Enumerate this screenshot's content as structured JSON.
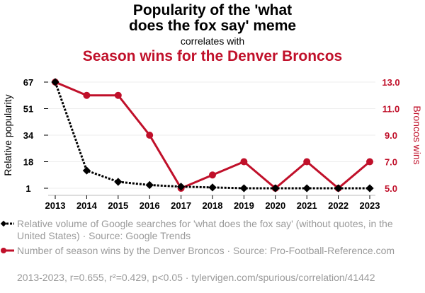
{
  "title_line1": "Popularity of the 'what",
  "title_line2": "does the fox say' meme",
  "correlates": "correlates with",
  "subtitle": "Season wins for the Denver Broncos",
  "legend": {
    "series1": "Relative volume of Google searches for 'what does the fox say' (without quotes, in the United States) · Source: Google Trends",
    "series2": "Number of season wins by the Denver Broncos · Source: Pro-Football-Reference.com"
  },
  "footer": "2013-2023, r=0.655, r²=0.429, p<0.05 · tylervigen.com/spurious/correlation/41442",
  "colors": {
    "series1": "#000000",
    "series2": "#c0102a"
  },
  "chart_data": {
    "type": "line",
    "x": [
      2013,
      2014,
      2015,
      2016,
      2017,
      2018,
      2019,
      2020,
      2021,
      2022,
      2023
    ],
    "series": [
      {
        "name": "Relative popularity",
        "axis": "left",
        "values": [
          67,
          12,
          5,
          3,
          2,
          1.5,
          1,
          1,
          1,
          1,
          1
        ]
      },
      {
        "name": "Broncos wins",
        "axis": "right",
        "values": [
          13,
          12,
          12,
          9,
          5,
          6,
          7,
          5,
          7,
          5,
          7
        ]
      }
    ],
    "ylabel_left": "Relative popularity",
    "ylabel_right": "Broncos wins",
    "yticks_left": [
      "67",
      "51",
      "34",
      "18",
      "1"
    ],
    "yticks_right": [
      "13.0",
      "11.0",
      "9.0",
      "7.0",
      "5.0"
    ],
    "ylim_left": [
      1,
      67
    ],
    "ylim_right": [
      5,
      13
    ],
    "grid": true
  }
}
